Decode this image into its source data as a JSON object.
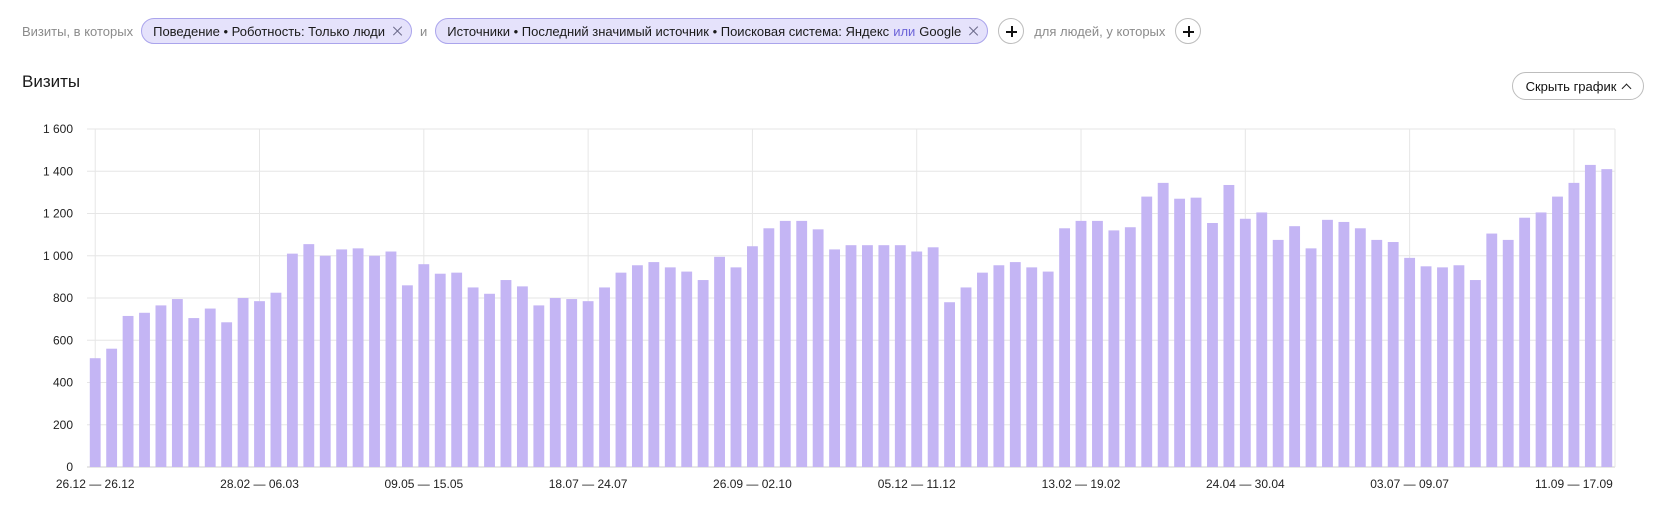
{
  "filters": {
    "prefix": "Визиты, в которых",
    "chip1": {
      "label": "Поведение • Роботность: Только люди"
    },
    "conjunction": "и",
    "chip2": {
      "label_a": "Источники • Последний значимый источник • Поисковая система: Яндекс",
      "or": "или",
      "label_b": "Google"
    },
    "people_text": "для людей, у которых"
  },
  "title": "Визиты",
  "toggle_label": "Скрыть график",
  "chart_data": {
    "type": "bar",
    "title": "",
    "xlabel": "",
    "ylabel": "",
    "ylim": [
      0,
      1600
    ],
    "yticks": [
      "0",
      "200",
      "400",
      "600",
      "800",
      "1 000",
      "1 200",
      "1 400",
      "1 600"
    ],
    "grid": true,
    "x_tick_labels": [
      "26.12 — 26.12",
      "28.02 — 06.03",
      "09.05 — 15.05",
      "18.07 — 24.07",
      "26.09 — 02.10",
      "05.12 — 11.12",
      "13.02 — 19.02",
      "24.04 — 30.04",
      "03.07 — 09.07",
      "11.09 — 17.09"
    ],
    "x_tick_every": 10,
    "color": "#c4b5f4",
    "values": [
      515,
      560,
      715,
      730,
      765,
      795,
      705,
      750,
      685,
      800,
      785,
      825,
      1010,
      1055,
      1000,
      1030,
      1035,
      1000,
      1020,
      860,
      960,
      915,
      920,
      850,
      820,
      885,
      855,
      765,
      800,
      795,
      785,
      850,
      920,
      955,
      970,
      945,
      925,
      885,
      995,
      945,
      1045,
      1130,
      1165,
      1165,
      1125,
      1030,
      1050,
      1050,
      1050,
      1050,
      1020,
      1040,
      780,
      850,
      920,
      955,
      970,
      945,
      925,
      1130,
      1165,
      1165,
      1120,
      1135,
      1280,
      1345,
      1270,
      1275,
      1155,
      1335,
      1175,
      1205,
      1075,
      1140,
      1035,
      1170,
      1160,
      1130,
      1075,
      1065,
      990,
      950,
      945,
      955,
      885,
      1105,
      1075,
      1180,
      1205,
      1280,
      1345,
      1430,
      1410
    ]
  }
}
